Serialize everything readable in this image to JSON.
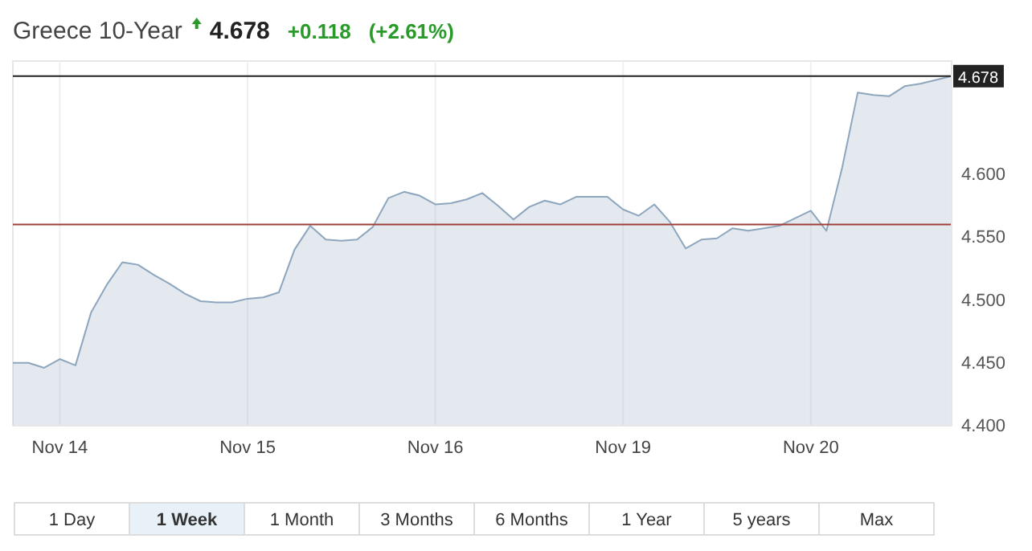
{
  "chart_data": {
    "type": "area",
    "title": "Greece 10-Year",
    "annotations": [
      "4.678",
      "+0.118",
      "(+2.61%)",
      "1 Day",
      "1 Week",
      "1 Month",
      "3 Months",
      "6 Months",
      "1 Year",
      "5 years",
      "Max"
    ],
    "categories": [
      null,
      null,
      null,
      "Nov 14",
      null,
      null,
      null,
      null,
      null,
      null,
      null,
      null,
      null,
      null,
      null,
      "Nov 15",
      null,
      null,
      null,
      null,
      null,
      null,
      null,
      null,
      null,
      null,
      null,
      "Nov 16",
      null,
      null,
      null,
      null,
      null,
      null,
      null,
      null,
      null,
      null,
      null,
      "Nov 19",
      null,
      null,
      null,
      null,
      null,
      null,
      null,
      null,
      null,
      null,
      null,
      "Nov 20",
      null,
      null,
      null,
      null,
      null,
      null,
      null,
      null,
      null
    ],
    "ylim": [
      4.4,
      4.69
    ],
    "yticks": [
      {
        "value": 4.4,
        "label": "4.400"
      },
      {
        "value": 4.45,
        "label": "4.450"
      },
      {
        "value": 4.5,
        "label": "4.500"
      },
      {
        "value": 4.55,
        "label": "4.550"
      },
      {
        "value": 4.6,
        "label": "4.600"
      }
    ],
    "grid": "x",
    "ref_lines": [
      {
        "axis": "y",
        "value": 4.678,
        "label": "4.678",
        "color": "#222222"
      },
      {
        "axis": "y",
        "value": 4.56,
        "color": "#a0403a"
      }
    ],
    "series": [
      {
        "color": "#8ea6bd",
        "values": [
          4.45,
          4.45,
          4.446,
          4.453,
          4.448,
          4.49,
          4.512,
          4.53,
          4.528,
          4.52,
          4.513,
          4.505,
          4.499,
          4.498,
          4.498,
          4.501,
          4.502,
          4.506,
          4.54,
          4.559,
          4.548,
          4.547,
          4.548,
          4.558,
          4.581,
          4.586,
          4.583,
          4.576,
          4.577,
          4.58,
          4.585,
          4.575,
          4.564,
          4.574,
          4.579,
          4.576,
          4.582,
          4.582,
          4.582,
          4.572,
          4.567,
          4.576,
          4.562,
          4.541,
          4.548,
          4.549,
          4.557,
          4.555,
          4.557,
          4.559,
          4.565,
          4.571,
          4.555,
          4.605,
          4.665,
          4.663,
          4.662,
          4.67,
          4.672,
          4.675,
          4.678
        ]
      }
    ]
  }
}
